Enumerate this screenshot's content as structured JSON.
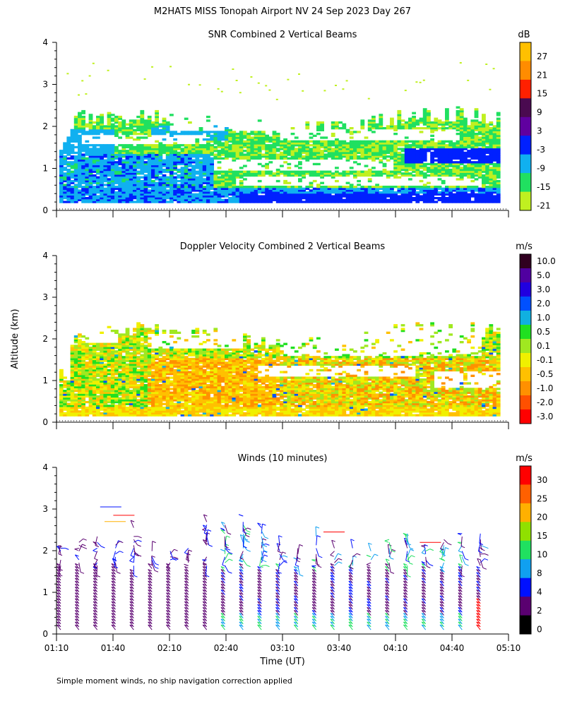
{
  "main_title": "M2HATS MISS Tonopah Airport NV  24 Sep 2023 Day 267",
  "footnote": "Simple moment winds, no ship navigation correction applied",
  "ylabel": "Altitude (km)",
  "xlabel": "Time (UT)",
  "chart_data": [
    {
      "type": "heatmap",
      "title": "SNR Combined 2 Vertical Beams",
      "units": "dB",
      "x_range_ut": [
        "01:10",
        "05:10"
      ],
      "ylim": [
        0,
        4
      ],
      "y_ticks": [
        "0",
        "1",
        "2",
        "3",
        "4"
      ],
      "colorbar": {
        "labels": [
          "27",
          "21",
          "15",
          "9",
          "3",
          "-3",
          "-9",
          "-15",
          "-21"
        ],
        "colors": [
          "#ffc000",
          "#ff8c00",
          "#ff2000",
          "#4a0a50",
          "#6000a0",
          "#0020ff",
          "#10b0f0",
          "#20e060",
          "#c0f020"
        ]
      },
      "features": "SNR field from ~0.15 to ~2.3 km; strongest (blue, -3 dB) near ground and a layer near 1.3 km after 04:10; green/yellow up to ~2.4 km"
    },
    {
      "type": "heatmap",
      "title": "Doppler Velocity Combined 2 Vertical Beams",
      "units": "m/s",
      "x_range_ut": [
        "01:10",
        "05:10"
      ],
      "ylim": [
        0,
        4
      ],
      "y_ticks": [
        "0",
        "1",
        "2",
        "3",
        "4"
      ],
      "colorbar": {
        "labels": [
          "10.0",
          "5.0",
          "3.0",
          "2.0",
          "1.0",
          "0.5",
          "0.1",
          "-0.1",
          "-0.5",
          "-1.0",
          "-2.0",
          "-3.0"
        ],
        "colors": [
          "#300020",
          "#5000a0",
          "#2000e0",
          "#0050ff",
          "#10b0e0",
          "#20e020",
          "#a0e820",
          "#f0f000",
          "#ffc000",
          "#ff9000",
          "#ff5000",
          "#ff0000"
        ]
      },
      "features": "Mostly -0.1 to -1.0 m/s (yellow/orange) below ~1.5 km with green/yellow up to ~2.4 km"
    },
    {
      "type": "scatter",
      "title": "Winds (10 minutes)",
      "units": "m/s",
      "x_ticks": [
        "01:10",
        "01:40",
        "02:10",
        "02:40",
        "03:10",
        "03:40",
        "04:10",
        "04:40",
        "05:10"
      ],
      "ylim": [
        0,
        4
      ],
      "y_ticks": [
        "0",
        "1",
        "2",
        "3",
        "4"
      ],
      "colorbar": {
        "labels": [
          "30",
          "25",
          "20",
          "15",
          "10",
          "8",
          "4",
          "2",
          "0"
        ],
        "colors": [
          "#ff0000",
          "#ff6000",
          "#ffb000",
          "#90e000",
          "#20e060",
          "#10a0f0",
          "#0010ff",
          "#5a0070",
          "#000000"
        ]
      },
      "features": "Wind barbs every 10 minutes from ~0.1 to ~2.8 km; light (purple, 2-4 m/s) early, 8-15 m/s near surface later"
    }
  ]
}
